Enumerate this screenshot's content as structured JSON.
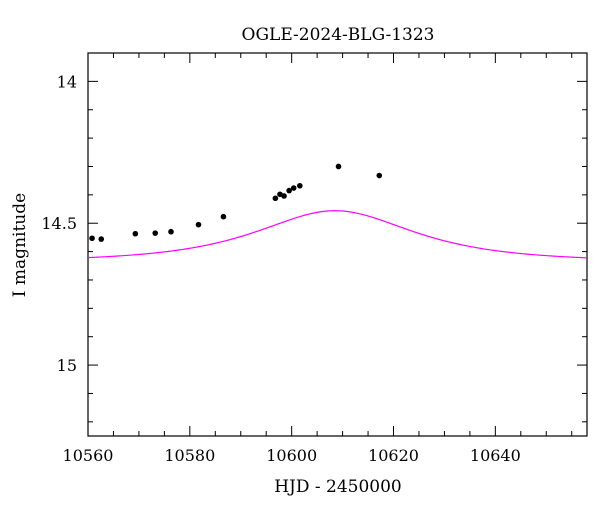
{
  "chart_data": {
    "type": "scatter",
    "title": "OGLE-2024-BLG-1323",
    "xlabel": "HJD - 2450000",
    "ylabel": "I magnitude",
    "xlim": [
      10560,
      10658
    ],
    "ylim": [
      15.25,
      13.9
    ],
    "y_inverted": true,
    "x_ticks": [
      10560,
      10580,
      10600,
      10620,
      10640
    ],
    "y_ticks": [
      14,
      14.5,
      15
    ],
    "y_tick_labels": [
      "14",
      "14.5",
      "15"
    ],
    "grid": false,
    "series": [
      {
        "kind": "points",
        "color": "#000000",
        "x": [
          10560.8,
          10562.6,
          10569.3,
          10573.2,
          10576.3,
          10581.7,
          10586.6,
          10596.8,
          10597.7,
          10598.5,
          10599.5,
          10600.4,
          10601.6,
          10609.2,
          10617.2
        ],
        "y": [
          14.553,
          14.556,
          14.537,
          14.535,
          14.53,
          14.505,
          14.477,
          14.412,
          14.398,
          14.404,
          14.385,
          14.376,
          14.368,
          14.3,
          14.332
        ]
      },
      {
        "kind": "model",
        "color": "#ff00ff",
        "t0": 10608.5,
        "tE": 21.5,
        "u0": 0.84,
        "fs": 0.37,
        "ibase": 14.635
      }
    ]
  }
}
